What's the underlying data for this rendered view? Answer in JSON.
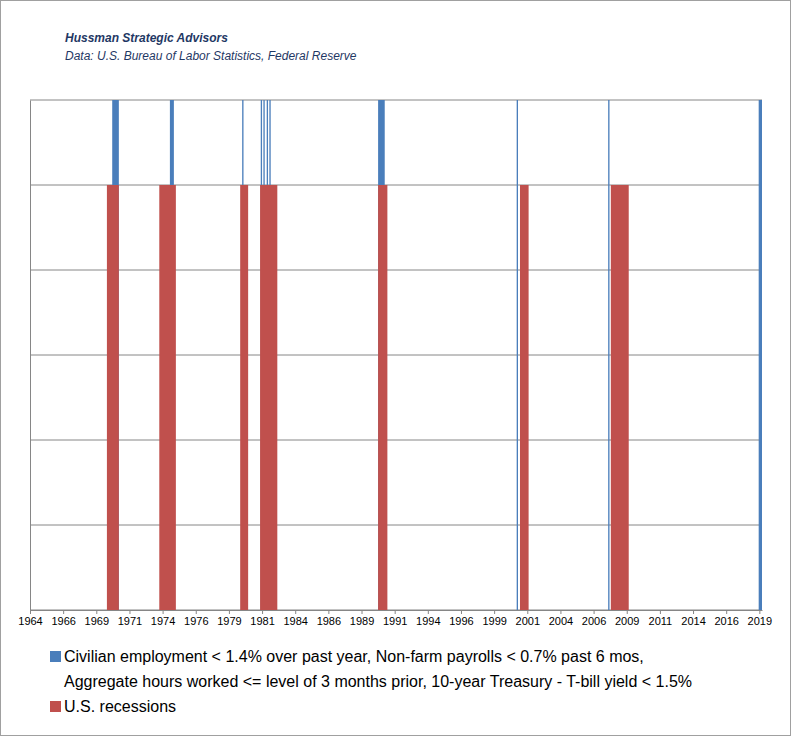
{
  "chart_data": {
    "type": "area",
    "title": "Hussman Strategic Advisors",
    "subtitle": "Data: U.S. Bureau of Labor Statistics, Federal Reserve",
    "line_style": "step",
    "x": [
      1964,
      1969.8,
      1970.2,
      1970.7,
      1973.75,
      1974.55,
      1974.85,
      1975.0,
      1979.85,
      1980.0,
      1980.1,
      1980.45,
      1981.35,
      1981.4,
      1981.5,
      1981.6,
      1981.7,
      1981.85,
      1981.95,
      1982.05,
      1982.15,
      1982.65,
      1990.25,
      1990.75,
      1990.95,
      2000.7,
      2000.8,
      2000.95,
      2001.6,
      2007.6,
      2007.7,
      2007.8,
      2009.15,
      2018.95,
      2019.2
    ],
    "series": [
      {
        "name": "Civilian employment < 1.4% over past year, Non-farm payrolls < 0.7% past 6 mos,\nAggregate hours worked <= level of 3 months prior, 10-year Treasury - T-bill yield < 1.5%",
        "color": "#4a7ebb",
        "values": [
          0,
          0,
          1.2,
          0,
          0,
          1.2,
          0,
          0,
          0,
          1.2,
          0,
          0,
          0,
          1.2,
          0,
          1.2,
          0,
          1.2,
          0,
          1.2,
          0,
          0,
          1.2,
          0,
          0,
          1.2,
          0,
          0,
          0,
          1.2,
          0,
          0,
          0,
          1.2,
          1.2
        ]
      },
      {
        "name": "U.S. recessions",
        "color": "#c0504d",
        "values": [
          0,
          1,
          1,
          0,
          1,
          1,
          1,
          0,
          1,
          1,
          1,
          0,
          1,
          1,
          1,
          1,
          1,
          1,
          1,
          1,
          1,
          0,
          1,
          1,
          0,
          0,
          0,
          1,
          0,
          0,
          0,
          1,
          0,
          0,
          0
        ]
      }
    ],
    "xlim": [
      1964,
      2019.2
    ],
    "xticks": [
      {
        "value": 1964,
        "label": "1964"
      },
      {
        "value": 1966.5,
        "label": "1966"
      },
      {
        "value": 1969,
        "label": "1969"
      },
      {
        "value": 1971.5,
        "label": "1971"
      },
      {
        "value": 1974,
        "label": "1974"
      },
      {
        "value": 1976.5,
        "label": "1976"
      },
      {
        "value": 1979,
        "label": "1979"
      },
      {
        "value": 1981.5,
        "label": "1981"
      },
      {
        "value": 1984,
        "label": "1984"
      },
      {
        "value": 1986.5,
        "label": "1986"
      },
      {
        "value": 1989,
        "label": "1989"
      },
      {
        "value": 1991.5,
        "label": "1991"
      },
      {
        "value": 1994,
        "label": "1994"
      },
      {
        "value": 1996.5,
        "label": "1996"
      },
      {
        "value": 1999,
        "label": "1999"
      },
      {
        "value": 2001.5,
        "label": "2001"
      },
      {
        "value": 2004,
        "label": "2004"
      },
      {
        "value": 2006.5,
        "label": "2006"
      },
      {
        "value": 2009,
        "label": "2009"
      },
      {
        "value": 2011.5,
        "label": "2011"
      },
      {
        "value": 2014,
        "label": "2014"
      },
      {
        "value": 2016.5,
        "label": "2016"
      },
      {
        "value": 2019,
        "label": "2019"
      }
    ],
    "ylim": [
      0,
      1.2
    ],
    "yticks": [
      0,
      0.2,
      0.4,
      0.6,
      0.8,
      1,
      1.2
    ],
    "grid": true,
    "tick_labels": "x",
    "legend": "bottom"
  }
}
